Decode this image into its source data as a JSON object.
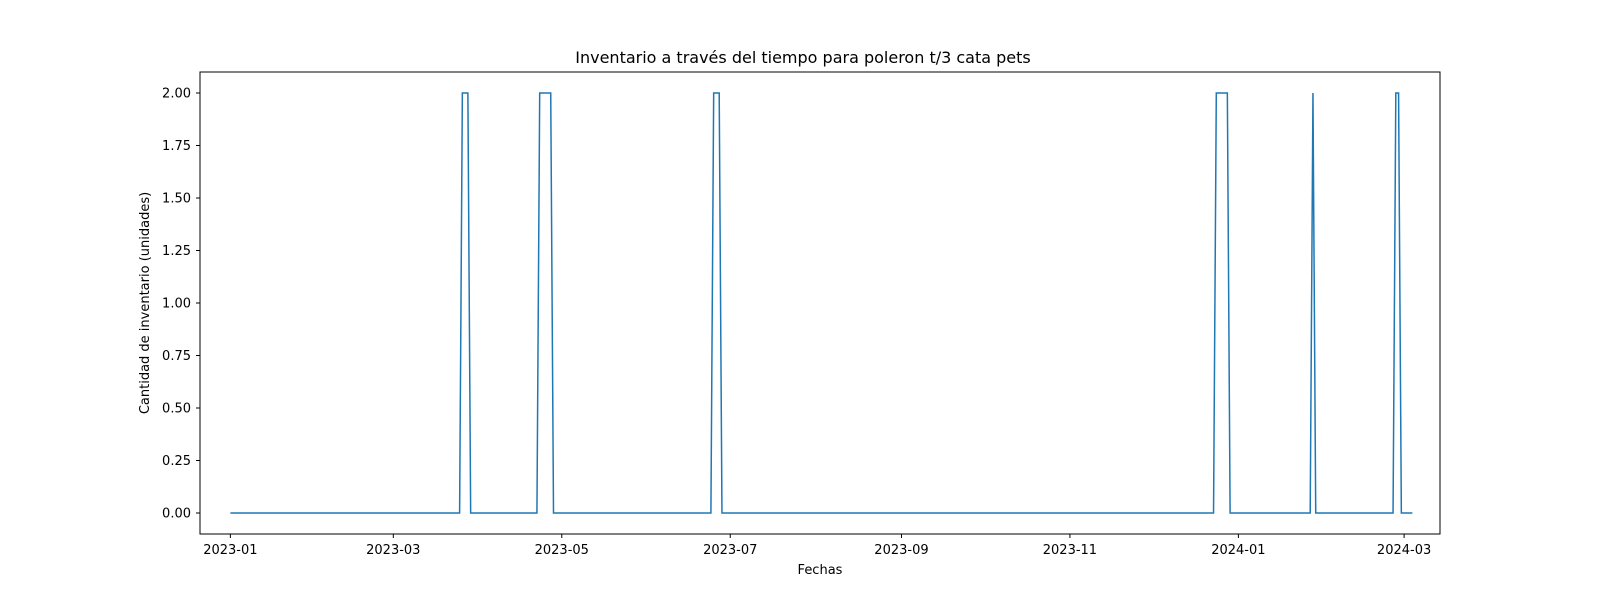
{
  "chart_data": {
    "type": "line",
    "title": "Inventario a través del tiempo para poleron t/3 cata pets",
    "xlabel": "Fechas",
    "ylabel": "Cantidad de inventario (unidades)",
    "xlim": [
      "2022-12-21",
      "2024-03-14"
    ],
    "ylim": [
      -0.1,
      2.1
    ],
    "grid": false,
    "xticks": [
      {
        "date": "2023-01-01",
        "label": "2023-01"
      },
      {
        "date": "2023-03-01",
        "label": "2023-03"
      },
      {
        "date": "2023-05-01",
        "label": "2023-05"
      },
      {
        "date": "2023-07-01",
        "label": "2023-07"
      },
      {
        "date": "2023-09-01",
        "label": "2023-09"
      },
      {
        "date": "2023-11-01",
        "label": "2023-11"
      },
      {
        "date": "2024-01-01",
        "label": "2024-01"
      },
      {
        "date": "2024-03-01",
        "label": "2024-03"
      }
    ],
    "yticks": [
      {
        "value": 0,
        "label": "0.00"
      },
      {
        "value": 0.25,
        "label": "0.25"
      },
      {
        "value": 0.5,
        "label": "0.50"
      },
      {
        "value": 0.75,
        "label": "0.75"
      },
      {
        "value": 1.0,
        "label": "1.00"
      },
      {
        "value": 1.25,
        "label": "1.25"
      },
      {
        "value": 1.5,
        "label": "1.50"
      },
      {
        "value": 1.75,
        "label": "1.75"
      },
      {
        "value": 2.0,
        "label": "2.00"
      }
    ],
    "series": [
      {
        "color": "#1f77b4",
        "points": [
          {
            "x": "2023-01-01",
            "y": 0
          },
          {
            "x": "2023-03-25",
            "y": 0
          },
          {
            "x": "2023-03-26",
            "y": 2
          },
          {
            "x": "2023-03-28",
            "y": 2
          },
          {
            "x": "2023-03-29",
            "y": 0
          },
          {
            "x": "2023-04-22",
            "y": 0
          },
          {
            "x": "2023-04-23",
            "y": 2
          },
          {
            "x": "2023-04-27",
            "y": 2
          },
          {
            "x": "2023-04-28",
            "y": 0
          },
          {
            "x": "2023-06-24",
            "y": 0
          },
          {
            "x": "2023-06-25",
            "y": 2
          },
          {
            "x": "2023-06-27",
            "y": 2
          },
          {
            "x": "2023-06-28",
            "y": 0
          },
          {
            "x": "2023-12-23",
            "y": 0
          },
          {
            "x": "2023-12-24",
            "y": 2
          },
          {
            "x": "2023-12-28",
            "y": 2
          },
          {
            "x": "2023-12-29",
            "y": 0
          },
          {
            "x": "2024-01-27",
            "y": 0
          },
          {
            "x": "2024-01-28",
            "y": 2
          },
          {
            "x": "2024-01-29",
            "y": 0
          },
          {
            "x": "2024-02-26",
            "y": 0
          },
          {
            "x": "2024-02-27",
            "y": 2
          },
          {
            "x": "2024-02-28",
            "y": 2
          },
          {
            "x": "2024-02-29",
            "y": 0
          },
          {
            "x": "2024-03-04",
            "y": 0
          }
        ]
      }
    ]
  }
}
